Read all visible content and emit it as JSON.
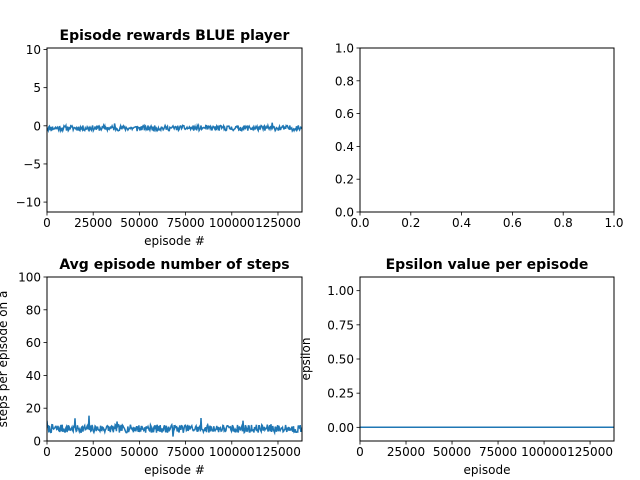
{
  "colors": {
    "series": "#1f77b4",
    "title_blue": "#0000ff"
  },
  "chart_data": [
    {
      "type": "line",
      "title": "Episode rewards BLUE player",
      "title_color": "#0000ff",
      "xlabel": "episode #",
      "ylabel": "",
      "xlim": [
        0,
        138000
      ],
      "ylim": [
        -11.3,
        10.2
      ],
      "xticks": [
        0,
        25000,
        50000,
        75000,
        100000,
        125000
      ],
      "xtick_labels": [
        "0",
        "25000",
        "50000",
        "75000",
        "100000",
        "125000"
      ],
      "yticks": [
        -10,
        -5,
        0,
        5,
        10
      ],
      "ytick_labels": [
        "−10",
        "−5",
        "0",
        "5",
        "10"
      ],
      "series": [
        {
          "noise": {
            "n": 420,
            "mean": -0.3,
            "amplitude": 0.35,
            "spike_amp": 0.5,
            "spike_every": 37,
            "seed": 11
          }
        }
      ]
    },
    {
      "type": "line",
      "title": "",
      "xlabel": "",
      "ylabel": "",
      "xlim": [
        0,
        1
      ],
      "ylim": [
        0,
        1
      ],
      "xticks": [
        0,
        0.2,
        0.4,
        0.6,
        0.8,
        1.0
      ],
      "xtick_labels": [
        "0.0",
        "0.2",
        "0.4",
        "0.6",
        "0.8",
        "1.0"
      ],
      "yticks": [
        0,
        0.2,
        0.4,
        0.6,
        0.8,
        1.0
      ],
      "ytick_labels": [
        "0.0",
        "0.2",
        "0.4",
        "0.6",
        "0.8",
        "1.0"
      ],
      "series": []
    },
    {
      "type": "line",
      "title": "Avg episode number of steps",
      "xlabel": "episode #",
      "ylabel": "steps per episode on a",
      "xlim": [
        0,
        138000
      ],
      "ylim": [
        0,
        100
      ],
      "xticks": [
        0,
        25000,
        50000,
        75000,
        100000,
        125000
      ],
      "xtick_labels": [
        "0",
        "25000",
        "50000",
        "75000",
        "100000",
        "125000"
      ],
      "yticks": [
        0,
        20,
        40,
        60,
        80,
        100
      ],
      "ytick_labels": [
        "0",
        "20",
        "40",
        "60",
        "80",
        "100"
      ],
      "series": [
        {
          "noise": {
            "n": 420,
            "mean": 7.5,
            "amplitude": 2.5,
            "spike_amp": 5,
            "spike_every": 23,
            "seed": 7
          }
        }
      ]
    },
    {
      "type": "line",
      "title": "Epsilon value per episode",
      "xlabel": "episode",
      "ylabel": "epsilon",
      "xlim": [
        0,
        138000
      ],
      "ylim": [
        -0.1,
        1.1
      ],
      "xticks": [
        0,
        25000,
        50000,
        75000,
        100000,
        125000
      ],
      "xtick_labels": [
        "0",
        "25000",
        "50000",
        "75000",
        "100000",
        "125000"
      ],
      "yticks": [
        0,
        0.25,
        0.5,
        0.75,
        1.0
      ],
      "ytick_labels": [
        "0.00",
        "0.25",
        "0.50",
        "0.75",
        "1.00"
      ],
      "series": [
        {
          "x": [
            0,
            138000
          ],
          "y": [
            0,
            0
          ]
        }
      ]
    }
  ]
}
